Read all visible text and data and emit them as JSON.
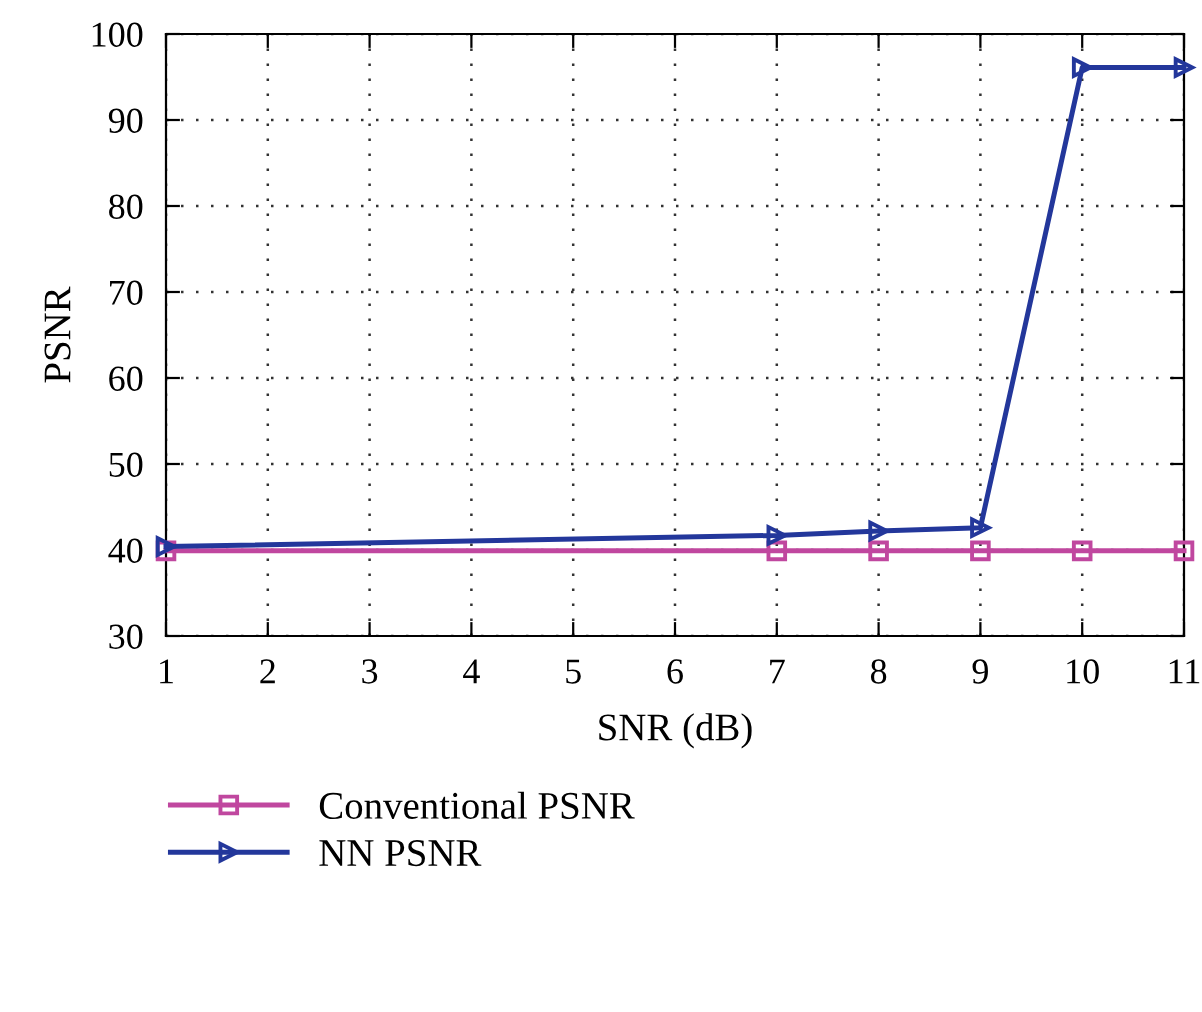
{
  "chart_data": {
    "type": "line",
    "xlabel": "SNR (dB)",
    "ylabel": "PSNR",
    "x": [
      1,
      7,
      8,
      9,
      10,
      11
    ],
    "series": [
      {
        "name": "Conventional PSNR",
        "color": "#c0479f",
        "marker": "square",
        "values": [
          39.9,
          39.9,
          39.9,
          39.9,
          39.9,
          39.9
        ]
      },
      {
        "name": "NN PSNR",
        "color": "#23379b",
        "marker": "triangle",
        "values": [
          40.4,
          41.7,
          42.2,
          42.6,
          96.1,
          96.1
        ]
      }
    ],
    "xlim": [
      1,
      11
    ],
    "xticks": [
      1,
      2,
      3,
      4,
      5,
      6,
      7,
      8,
      9,
      10,
      11
    ],
    "ylim": [
      30,
      100
    ],
    "yticks": [
      30,
      40,
      50,
      60,
      70,
      80,
      90,
      100
    ],
    "grid": true,
    "legend": "bottom",
    "line_style": "solid"
  }
}
